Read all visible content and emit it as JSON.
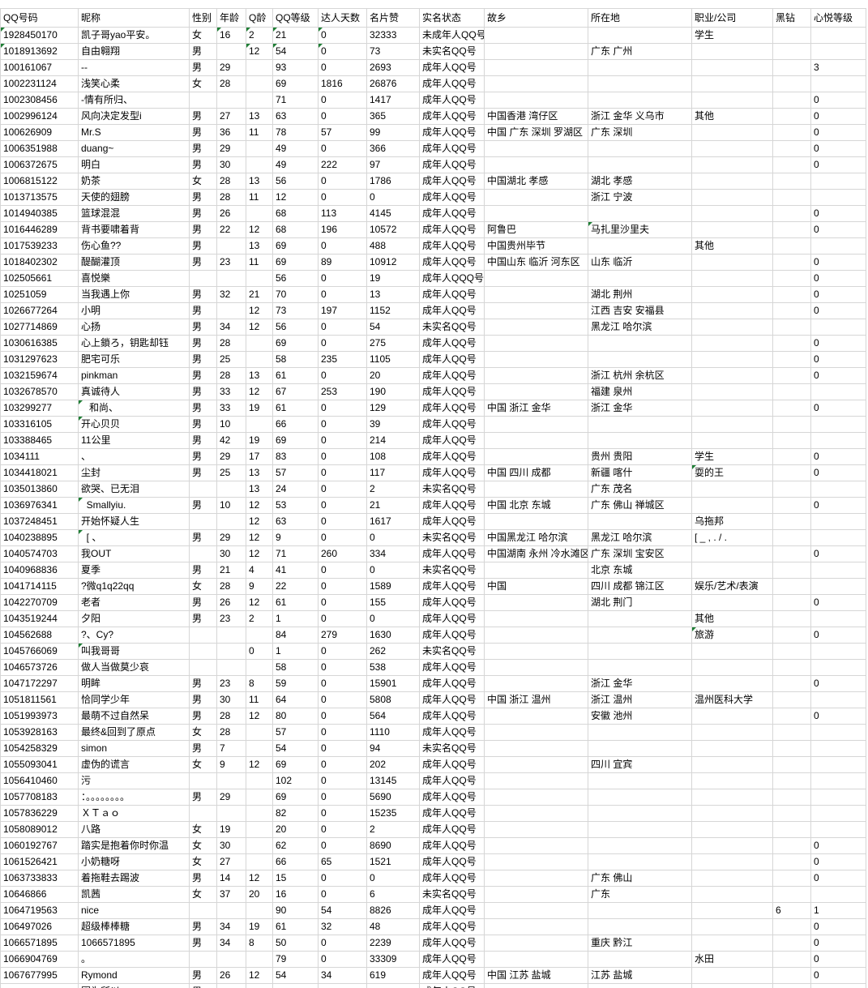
{
  "sheet": {
    "columns": [
      "QQ号码",
      "昵称",
      "性别",
      "年龄",
      "Q龄",
      "QQ等级",
      "达人天数",
      "名片赞",
      "实名状态",
      "故乡",
      "所在地",
      "职业/公司",
      "黑钻",
      "心悦等级"
    ],
    "rows": [
      [
        "1928450170",
        "凯子哥yao平安。",
        "女",
        "16",
        "2",
        "21",
        "0",
        "32333",
        "未成年人QQ号",
        "",
        "",
        "学生",
        "",
        ""
      ],
      [
        "1018913692",
        "自由翱翔",
        "男",
        "",
        "12",
        "54",
        "0",
        "73",
        "未实名QQ号",
        "",
        "广东 广州",
        "",
        "",
        ""
      ],
      [
        "100161067",
        "--",
        "男",
        "29",
        "",
        "93",
        "0",
        "2693",
        "成年人QQ号",
        "",
        "",
        "",
        "",
        "3"
      ],
      [
        "1002231124",
        "浅笑心柔",
        "女",
        "28",
        "",
        "69",
        "1816",
        "26876",
        "成年人QQ号",
        "",
        "",
        "",
        "",
        ""
      ],
      [
        "1002308456",
        "-情有所归、",
        "",
        "",
        "",
        "71",
        "0",
        "1417",
        "成年人QQ号",
        "",
        "",
        "",
        "",
        "0"
      ],
      [
        "1002996124",
        "风向决定发型i",
        "男",
        "27",
        "13",
        "63",
        "0",
        "365",
        "成年人QQ号",
        "中国香港 湾仔区",
        "浙江 金华 义乌市",
        "其他",
        "",
        "0"
      ],
      [
        "100626909",
        "Mr.S",
        "男",
        "36",
        "11",
        "78",
        "57",
        "99",
        "成年人QQ号",
        "中国 广东 深圳 罗湖区",
        "广东 深圳",
        "",
        "",
        "0"
      ],
      [
        "1006351988",
        "duang~",
        "男",
        "29",
        "",
        "49",
        "0",
        "366",
        "成年人QQ号",
        "",
        "",
        "",
        "",
        "0"
      ],
      [
        "1006372675",
        "明白",
        "男",
        "30",
        "",
        "49",
        "222",
        "97",
        "成年人QQ号",
        "",
        "",
        "",
        "",
        "0"
      ],
      [
        "1006815122",
        "奶茶",
        "女",
        "28",
        "13",
        "56",
        "0",
        "1786",
        "成年人QQ号",
        "中国湖北 孝感",
        "湖北 孝感",
        "",
        "",
        ""
      ],
      [
        "1013713575",
        "天使的翅膀",
        "男",
        "28",
        "11",
        "12",
        "0",
        "0",
        "成年人QQ号",
        "",
        "浙江 宁波",
        "",
        "",
        ""
      ],
      [
        "1014940385",
        "篮球混混",
        "男",
        "26",
        "",
        "68",
        "113",
        "4145",
        "成年人QQ号",
        "",
        "",
        "",
        "",
        "0"
      ],
      [
        "1016446289",
        "背书要啸着背",
        "男",
        "22",
        "12",
        "68",
        "196",
        "10572",
        "成年人QQ号",
        "阿鲁巴",
        "马扎里沙里夫",
        "",
        "",
        "0"
      ],
      [
        "1017539233",
        "伤心鱼??",
        "男",
        "",
        "13",
        "69",
        "0",
        "488",
        "成年人QQ号",
        "中国贵州毕节",
        "",
        "其他",
        "",
        ""
      ],
      [
        "1018402302",
        "醍醐灌顶",
        "男",
        "23",
        "11",
        "69",
        "89",
        "10912",
        "成年人QQ号",
        "中国山东 临沂 河东区",
        "山东 临沂",
        "",
        "",
        "0"
      ],
      [
        "102505661",
        "喜悦樂",
        "",
        "",
        "",
        "56",
        "0",
        "19",
        "成年人QQQ号",
        "",
        "",
        "",
        "",
        "0"
      ],
      [
        "10251059",
        "当我遇上你",
        "男",
        "32",
        "21",
        "70",
        "0",
        "13",
        "成年人QQ号",
        "",
        "湖北 荆州",
        "",
        "",
        "0"
      ],
      [
        "1026677264",
        "小明",
        "男",
        "",
        "12",
        "73",
        "197",
        "1152",
        "成年人QQ号",
        "",
        "江西 吉安 安福县",
        "",
        "",
        "0"
      ],
      [
        "1027714869",
        "心扬",
        "男",
        "34",
        "12",
        "56",
        "0",
        "54",
        "未实名QQ号",
        "",
        "黑龙江 哈尔滨",
        "",
        "",
        ""
      ],
      [
        "1030616385",
        "心上鎖ろ，钥匙却钰",
        "男",
        "28",
        "",
        "69",
        "0",
        "275",
        "成年人QQ号",
        "",
        "",
        "",
        "",
        "0"
      ],
      [
        "1031297623",
        "肥宅可乐",
        "男",
        "25",
        "",
        "58",
        "235",
        "1105",
        "成年人QQ号",
        "",
        "",
        "",
        "",
        "0"
      ],
      [
        "1032159674",
        "pinkman",
        "男",
        "28",
        "13",
        "61",
        "0",
        "20",
        "成年人QQ号",
        "",
        "浙江 杭州 余杭区",
        "",
        "",
        "0"
      ],
      [
        "1032678570",
        "真诚待人",
        "男",
        "33",
        "12",
        "67",
        "253",
        "190",
        "成年人QQ号",
        "",
        "福建 泉州",
        "",
        "",
        ""
      ],
      [
        "103299277",
        "   和尚、",
        "男",
        "33",
        "19",
        "61",
        "0",
        "129",
        "成年人QQ号",
        "中国 浙江 金华",
        "浙江 金华",
        "",
        "",
        "0"
      ],
      [
        "103316105",
        "开心贝贝",
        "男",
        "10",
        "",
        "66",
        "0",
        "39",
        "成年人QQ号",
        "",
        "",
        "",
        "",
        ""
      ],
      [
        "103388465",
        "11公里",
        "男",
        "42",
        "19",
        "69",
        "0",
        "214",
        "成年人QQ号",
        "",
        "",
        "",
        "",
        ""
      ],
      [
        "1034111",
        "、",
        "男",
        "29",
        "17",
        "83",
        "0",
        "108",
        "成年人QQ号",
        "",
        "贵州 贵阳",
        "学生",
        "",
        "0"
      ],
      [
        "1034418021",
        "尘封",
        "男",
        "25",
        "13",
        "57",
        "0",
        "117",
        "成年人QQ号",
        "中国 四川 成都",
        "新疆 喀什",
        "耍的王",
        "",
        "0"
      ],
      [
        "1035013860",
        "欲哭、已无泪",
        "",
        "",
        "13",
        "24",
        "0",
        "2",
        "未实名QQ号",
        "",
        "广东 茂名",
        "",
        "",
        ""
      ],
      [
        "1036976341",
        "  Smallyiu.",
        "男",
        "10",
        "12",
        "53",
        "0",
        "21",
        "成年人QQ号",
        "中国 北京 东城",
        "广东 佛山 禅城区",
        "",
        "",
        "0"
      ],
      [
        "1037248451",
        "开始怀疑人生",
        "",
        "",
        "12",
        "63",
        "0",
        "1617",
        "成年人QQ号",
        "",
        "",
        "乌拖邦",
        "",
        ""
      ],
      [
        "1040238895",
        "  [ 、",
        "男",
        "29",
        "12",
        "9",
        "0",
        "0",
        "未实名QQ号",
        "中国黑龙江 哈尔滨",
        "黑龙江 哈尔滨",
        "[ _ , . / .",
        "",
        ""
      ],
      [
        "1040574703",
        "我OUT",
        "",
        "30",
        "12",
        "71",
        "260",
        "334",
        "成年人QQ号",
        "中国湖南 永州 冷水滩区",
        "广东 深圳 宝安区",
        "",
        "",
        "0"
      ],
      [
        "1040968836",
        "夏季",
        "男",
        "21",
        "4",
        "41",
        "0",
        "0",
        "未实名QQ号",
        "",
        "北京 东城",
        "",
        "",
        ""
      ],
      [
        "1041714115",
        "?微q1q22qq",
        "女",
        "28",
        "9",
        "22",
        "0",
        "1589",
        "成年人QQ号",
        "中国",
        "四川 成都 锦江区",
        "娱乐/艺术/表演",
        "",
        ""
      ],
      [
        "1042270709",
        "老者",
        "男",
        "26",
        "12",
        "61",
        "0",
        "155",
        "成年人QQ号",
        "",
        "湖北 荆门",
        "",
        "",
        "0"
      ],
      [
        "1043519244",
        "夕阳",
        "男",
        "23",
        "2",
        "1",
        "0",
        "0",
        "成年人QQ号",
        "",
        "",
        "其他",
        "",
        ""
      ],
      [
        "104562688",
        "?、Cy?",
        "",
        "",
        "",
        "84",
        "279",
        "1630",
        "成年人QQ号",
        "",
        "",
        "旅游",
        "",
        "0"
      ],
      [
        "1045766069",
        "叫我哥哥",
        "",
        "",
        "0",
        "1",
        "0",
        "262",
        "未实名QQ号",
        "",
        "",
        "",
        "",
        ""
      ],
      [
        "1046573726",
        "做人当做莫少哀",
        "",
        "",
        "",
        "58",
        "0",
        "538",
        "成年人QQ号",
        "",
        "",
        "",
        "",
        ""
      ],
      [
        "1047172297",
        "明眸",
        "男",
        "23",
        "8",
        "59",
        "0",
        "15901",
        "成年人QQ号",
        "",
        "浙江 金华",
        "",
        "",
        "0"
      ],
      [
        "1051811561",
        "恰同学少年",
        "男",
        "30",
        "11",
        "64",
        "0",
        "5808",
        "成年人QQ号",
        "中国 浙江 温州",
        "浙江 温州",
        "温州医科大学",
        "",
        ""
      ],
      [
        "1051993973",
        "最萌不过自然呆",
        "男",
        "28",
        "12",
        "80",
        "0",
        "564",
        "成年人QQ号",
        "",
        "安徽 池州",
        "",
        "",
        "0"
      ],
      [
        "1053928163",
        "最终&回到了原点",
        "女",
        "28",
        "",
        "57",
        "0",
        "1110",
        "成年人QQ号",
        "",
        "",
        "",
        "",
        ""
      ],
      [
        "1054258329",
        "simon",
        "男",
        "7",
        "",
        "54",
        "0",
        "94",
        "未实名QQ号",
        "",
        "",
        "",
        "",
        ""
      ],
      [
        "1055093041",
        "虚伪的谎言",
        "女",
        "9",
        "12",
        "69",
        "0",
        "202",
        "成年人QQ号",
        "",
        "四川 宜宾",
        "",
        "",
        ""
      ],
      [
        "1056410460",
        "污",
        "",
        "",
        "",
        "102",
        "0",
        "13145",
        "成年人QQ号",
        "",
        "",
        "",
        "",
        ""
      ],
      [
        "1057708183",
        "：。。。。。。。。",
        "男",
        "29",
        "",
        "69",
        "0",
        "5690",
        "成年人QQ号",
        "",
        "",
        "",
        "",
        ""
      ],
      [
        "1057836229",
        "ＸＴａｏ",
        "",
        "",
        "",
        "82",
        "0",
        "15235",
        "成年人QQ号",
        "",
        "",
        "",
        "",
        ""
      ],
      [
        "1058089012",
        "八路",
        "女",
        "19",
        "",
        "20",
        "0",
        "2",
        "成年人QQ号",
        "",
        "",
        "",
        "",
        ""
      ],
      [
        "1060192767",
        "踏实是抱着你时你温",
        "女",
        "30",
        "",
        "62",
        "0",
        "8690",
        "成年人QQ号",
        "",
        "",
        "",
        "",
        "0"
      ],
      [
        "1061526421",
        "小奶糖呀",
        "女",
        "27",
        "",
        "66",
        "65",
        "1521",
        "成年人QQ号",
        "",
        "",
        "",
        "",
        "0"
      ],
      [
        "1063733833",
        "着拖鞋去踢波",
        "男",
        "14",
        "12",
        "15",
        "0",
        "0",
        "成年人QQ号",
        "",
        "广东 佛山",
        "",
        "",
        "0"
      ],
      [
        "10646866",
        "凯茜",
        "女",
        "37",
        "20",
        "16",
        "0",
        "6",
        "未实名QQ号",
        "",
        "广东",
        "",
        "",
        ""
      ],
      [
        "1064719563",
        "nice",
        "",
        "",
        "",
        "90",
        "54",
        "8826",
        "成年人QQ号",
        "",
        "",
        "",
        "6",
        "1"
      ],
      [
        "106497026",
        "超级棒棒糖",
        "男",
        "34",
        "19",
        "61",
        "32",
        "48",
        "成年人QQ号",
        "",
        "",
        "",
        "",
        "0"
      ],
      [
        "1066571895",
        "1066571895",
        "男",
        "34",
        "8",
        "50",
        "0",
        "2239",
        "成年人QQ号",
        "",
        "重庆 黔江",
        "",
        "",
        "0"
      ],
      [
        "1066904769",
        "。",
        "",
        "",
        "",
        "79",
        "0",
        "33309",
        "成年人QQ号",
        "",
        "",
        "水田",
        "",
        "0"
      ],
      [
        "1067677995",
        "Rymond",
        "男",
        "26",
        "12",
        "54",
        "34",
        "619",
        "成年人QQ号",
        "中国 江苏 盐城",
        "江苏 盐城",
        "",
        "",
        "0"
      ],
      [
        "",
        "因为所以",
        "男",
        "",
        "",
        "",
        "",
        "",
        "成年人QQ号",
        "",
        "",
        "",
        "",
        ""
      ]
    ],
    "marks": {
      "0": [
        0,
        3,
        4,
        5,
        6
      ],
      "1": [
        0,
        4,
        5,
        6
      ],
      "12": [
        10
      ],
      "23": [
        1
      ],
      "24": [
        1
      ],
      "27": [
        11
      ],
      "29": [
        1
      ],
      "31": [
        1
      ],
      "37": [
        11
      ],
      "38": [
        1
      ]
    }
  },
  "colors": {
    "gridline": "#d6d6d6",
    "marker_green": "#1e7e34",
    "text": "#000000",
    "background": "#ffffff"
  }
}
